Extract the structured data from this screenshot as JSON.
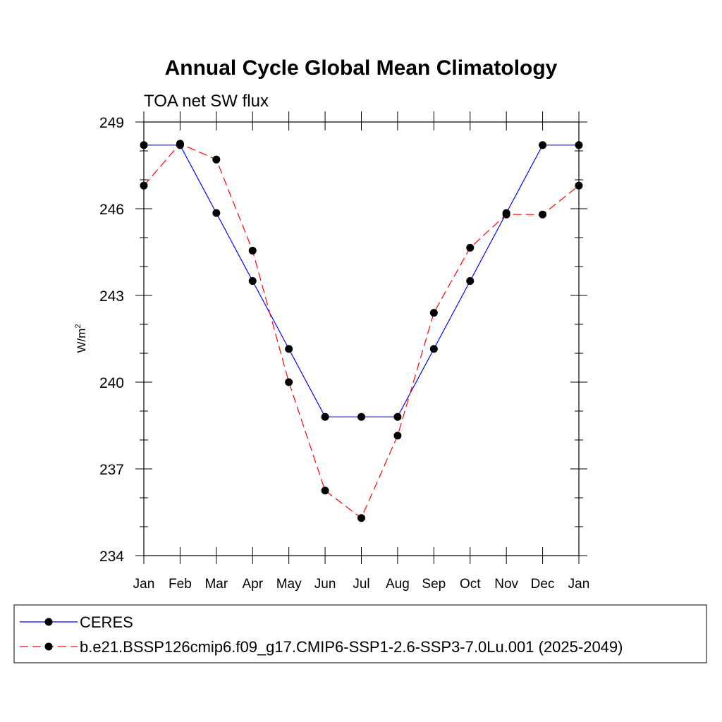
{
  "chart_data": {
    "type": "line",
    "title": "Annual Cycle Global Mean Climatology",
    "subtitle": "TOA net SW flux",
    "xlabel": "",
    "ylabel": "W/m",
    "ylabel_superscript": "2",
    "categories": [
      "Jan",
      "Feb",
      "Mar",
      "Apr",
      "May",
      "Jun",
      "Jul",
      "Aug",
      "Sep",
      "Oct",
      "Nov",
      "Dec",
      "Jan"
    ],
    "ylim": [
      234,
      249
    ],
    "yticks": [
      234,
      237,
      240,
      243,
      246,
      249
    ],
    "grid": false,
    "legend_position": "bottom",
    "series": [
      {
        "name": "CERES",
        "color": "#0000ff",
        "line_style": "solid",
        "marker": "filled-circle",
        "values": [
          248.2,
          248.2,
          245.85,
          243.5,
          241.15,
          238.8,
          238.8,
          238.8,
          241.15,
          243.5,
          245.85,
          248.2,
          248.2
        ]
      },
      {
        "name": "b.e21.BSSP126cmip6.f09_g17.CMIP6-SSP1-2.6-SSP3-7.0Lu.001 (2025-2049)",
        "color": "#ff0000",
        "line_style": "dashed",
        "marker": "filled-circle",
        "values": [
          246.8,
          248.25,
          247.7,
          244.55,
          240.0,
          236.25,
          235.3,
          238.15,
          242.4,
          244.65,
          245.8,
          245.8,
          246.8
        ]
      }
    ]
  }
}
